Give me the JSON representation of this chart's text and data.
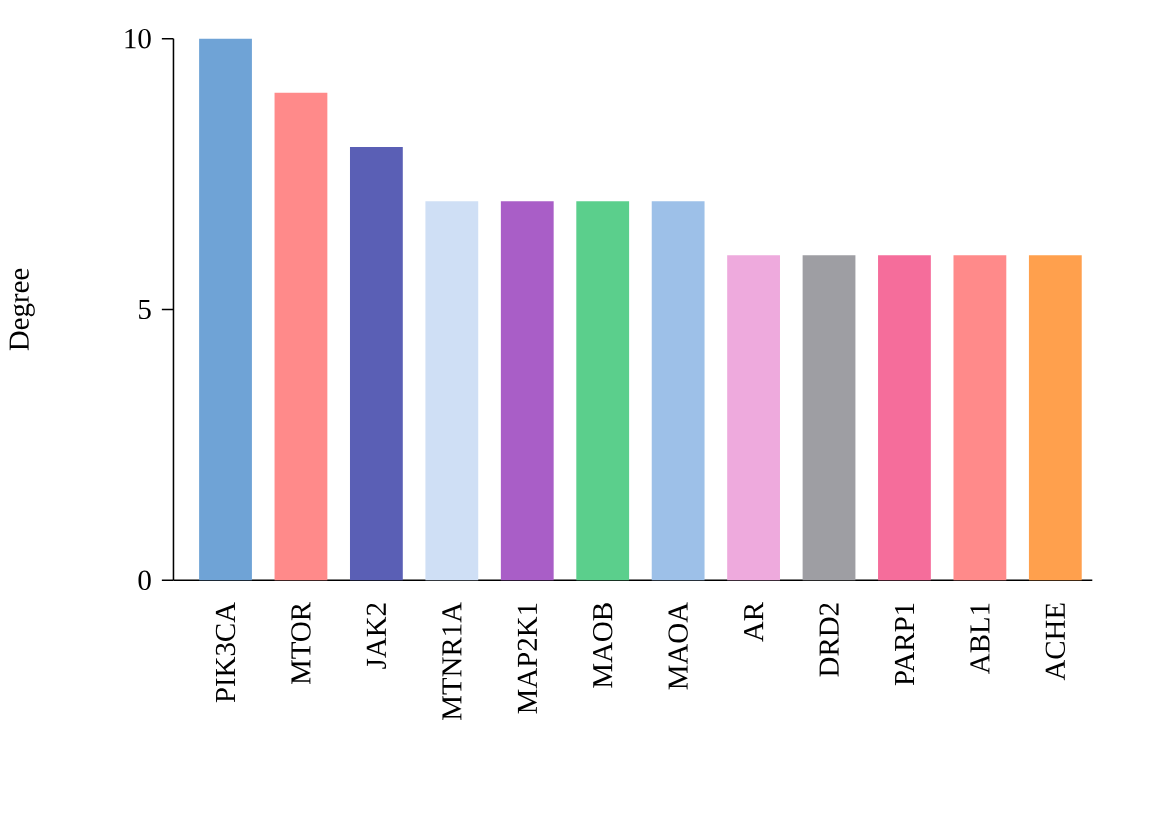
{
  "chart_data": {
    "type": "bar",
    "ylabel": "Degree",
    "categories": [
      "PIK3CA",
      "MTOR",
      "JAK2",
      "MTNR1A",
      "MAP2K1",
      "MAOB",
      "MAOA",
      "AR",
      "DRD2",
      "PARP1",
      "ABL1",
      "ACHE"
    ],
    "values": [
      10,
      9,
      8,
      7,
      7,
      7,
      7,
      6,
      6,
      6,
      6,
      6
    ],
    "colors": [
      "#6fa3d6",
      "#ff8a8a",
      "#5a5fb5",
      "#cfdff5",
      "#a95ec7",
      "#5bcf8c",
      "#9dc0e8",
      "#eeaadd",
      "#9e9ea3",
      "#f56d9b",
      "#ff8a8a",
      "#ffa04d"
    ],
    "ylim": [
      0,
      10
    ],
    "yticks": [
      0,
      5,
      10
    ],
    "grid": false
  }
}
